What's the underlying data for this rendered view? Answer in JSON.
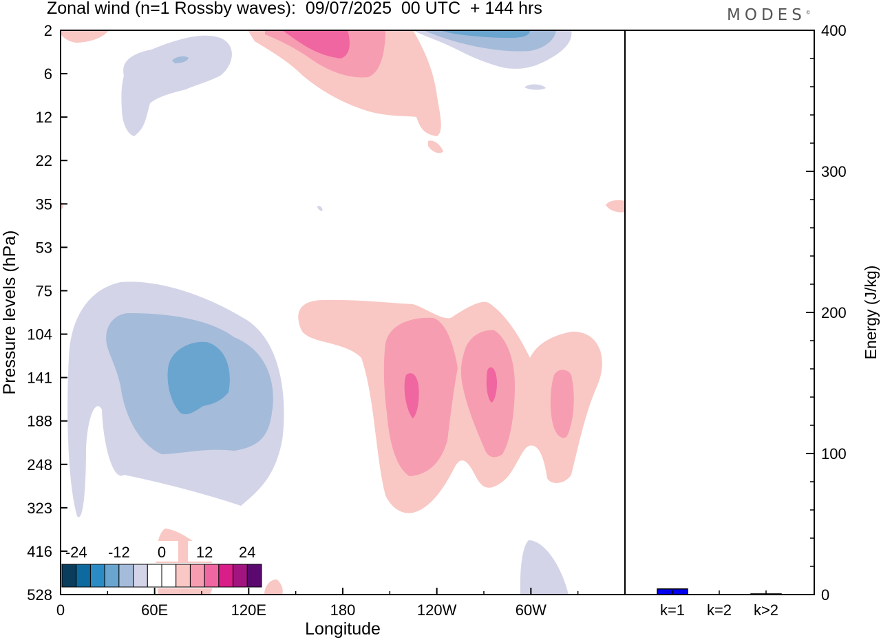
{
  "header": {
    "title": "Zonal wind (n=1 Rossby waves):  09/07/2025  00 UTC  + 144 hrs",
    "logo_text": "MODES",
    "logo_mark": "©"
  },
  "chart_data": [
    {
      "type": "heatmap",
      "title": "Zonal wind (n=1 Rossby waves):  09/07/2025  00 UTC  + 144 hrs",
      "xlabel": "Longitude",
      "ylabel": "Pressure levels (hPa)",
      "x_ticks": [
        "0",
        "60E",
        "120E",
        "180",
        "120W",
        "60W"
      ],
      "x_tick_values": [
        0,
        60,
        120,
        180,
        240,
        300
      ],
      "xlim": [
        0,
        360
      ],
      "y_ticks": [
        "2",
        "6",
        "12",
        "22",
        "35",
        "53",
        "75",
        "104",
        "141",
        "188",
        "248",
        "323",
        "416",
        "528"
      ],
      "y_axis_inverted": true,
      "colorbar": {
        "labels": [
          "-24",
          "-12",
          "0",
          "12",
          "24"
        ],
        "label_values": [
          -24,
          -12,
          0,
          12,
          24
        ],
        "colors": [
          "#0a3d5c",
          "#0e6a9e",
          "#2b8bc4",
          "#6aa5cf",
          "#a4bbd9",
          "#d3d4e8",
          "#ffffff",
          "#ffffff",
          "#f9c8c4",
          "#f79db2",
          "#ef66a0",
          "#d91e8a",
          "#a21580",
          "#5a0a6e"
        ]
      },
      "features": [
        {
          "sign": "negative",
          "peak": -9,
          "lon": 88,
          "level": "141",
          "description": "upper-tropospheric easterly anomaly over Indian Ocean / Maritime Continent"
        },
        {
          "sign": "positive",
          "peak": 9,
          "lon": 225,
          "level": "141"
        },
        {
          "sign": "positive",
          "peak": 9,
          "lon": 274,
          "level": "141"
        },
        {
          "sign": "positive",
          "peak": 6,
          "lon": 321,
          "level": "141"
        },
        {
          "sign": "positive",
          "peak": 9,
          "lon": 160,
          "level": "2"
        },
        {
          "sign": "negative",
          "peak": -9,
          "lon": 275,
          "level": "2"
        }
      ],
      "grid": false
    },
    {
      "type": "bar",
      "categories": [
        "k=1",
        "k=2",
        "k>2"
      ],
      "values": [
        4,
        0,
        0.5
      ],
      "ylabel": "Energy (J/kg)",
      "ylim": [
        0,
        400
      ],
      "y_ticks": [
        "0",
        "100",
        "200",
        "300",
        "400"
      ],
      "y_tick_values": [
        0,
        100,
        200,
        300,
        400
      ],
      "colors": [
        "#0000ee",
        "#0000ee",
        "#0000ee"
      ]
    }
  ]
}
